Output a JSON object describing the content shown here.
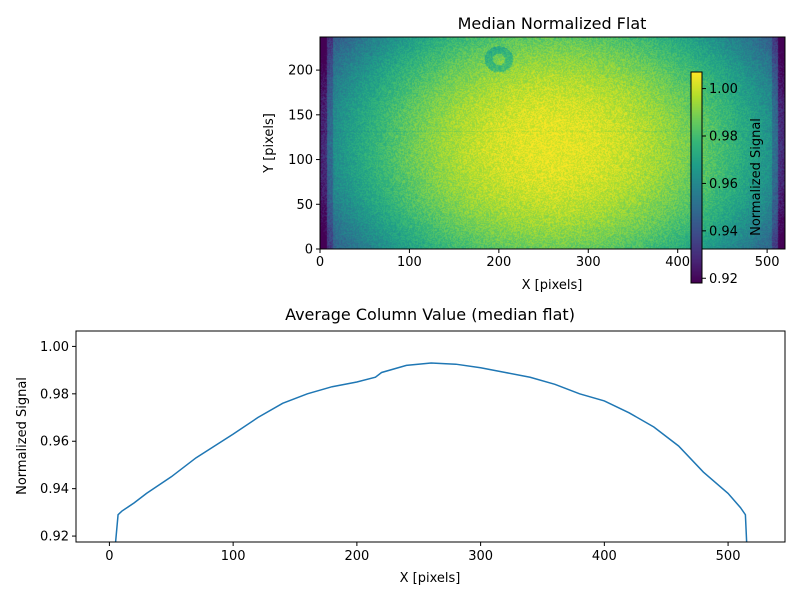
{
  "chart_data": [
    {
      "type": "heatmap",
      "title": "Median Normalized Flat",
      "xlabel": "X [pixels]",
      "ylabel": "Y [pixels]",
      "xlim": [
        0,
        520
      ],
      "ylim": [
        0,
        237
      ],
      "xticks": [
        "0",
        "100",
        "200",
        "300",
        "400",
        "500"
      ],
      "xtick_values": [
        0,
        100,
        200,
        300,
        400,
        500
      ],
      "yticks": [
        "0",
        "50",
        "100",
        "150",
        "200"
      ],
      "ytick_values": [
        0,
        50,
        100,
        150,
        200
      ],
      "colormap": "viridis",
      "color_range": [
        0.918,
        1.007
      ],
      "colorbar": {
        "label": "Normalized Signal",
        "ticks": [
          "0.92",
          "0.94",
          "0.96",
          "0.98",
          "1.00"
        ],
        "tick_values": [
          0.92,
          0.94,
          0.96,
          0.98,
          1.0
        ]
      },
      "features": {
        "peak_center": [
          262,
          115
        ],
        "dust_ring_center": [
          200,
          212
        ],
        "horizontal_line_y": 131,
        "legend_placement": "none"
      }
    },
    {
      "type": "line",
      "title": "Average Column Value (median flat)",
      "xlabel": "X [pixels]",
      "ylabel": "Normalized Signal",
      "xlim": [
        -27,
        546
      ],
      "ylim": [
        0.9175,
        1.0065
      ],
      "xticks": [
        "0",
        "100",
        "200",
        "300",
        "400",
        "500"
      ],
      "xtick_values": [
        0,
        100,
        200,
        300,
        400,
        500
      ],
      "yticks": [
        "0.92",
        "0.94",
        "0.96",
        "0.98",
        "1.00"
      ],
      "ytick_values": [
        0.92,
        0.94,
        0.96,
        0.98,
        1.0
      ],
      "grid": false,
      "color": "#1f77b4",
      "series": [
        {
          "x": [
            5,
            7,
            10,
            20,
            30,
            50,
            70,
            100,
            120,
            140,
            160,
            180,
            200,
            215,
            220,
            240,
            260,
            280,
            300,
            320,
            340,
            360,
            380,
            400,
            420,
            440,
            460,
            480,
            500,
            510,
            514,
            515
          ],
          "y": [
            0.9175,
            0.929,
            0.9305,
            0.934,
            0.938,
            0.945,
            0.953,
            0.963,
            0.97,
            0.976,
            0.98,
            0.983,
            0.985,
            0.987,
            0.989,
            0.992,
            0.993,
            0.9925,
            0.991,
            0.989,
            0.987,
            0.984,
            0.98,
            0.977,
            0.972,
            0.966,
            0.958,
            0.947,
            0.938,
            0.932,
            0.929,
            0.9175
          ]
        }
      ]
    }
  ]
}
